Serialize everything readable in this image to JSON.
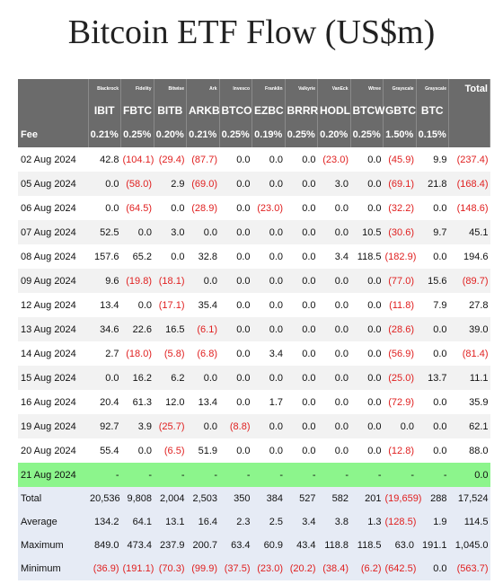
{
  "title": "Bitcoin ETF Flow (US$m)",
  "table": {
    "issuers": [
      "Blackrock",
      "Fidelity",
      "Bitwise",
      "Ark",
      "Invesco",
      "Franklin",
      "Valkyrie",
      "VanEck",
      "Wtree",
      "Grayscale",
      "Grayscale",
      "Total"
    ],
    "tickers": [
      "IBIT",
      "FBTC",
      "BITB",
      "ARKB",
      "BTCO",
      "EZBC",
      "BRRR",
      "HODL",
      "BTCW",
      "GBTC",
      "BTC"
    ],
    "fee": {
      "label": "Fee",
      "values": [
        "0.21%",
        "0.25%",
        "0.20%",
        "0.21%",
        "0.25%",
        "0.19%",
        "0.25%",
        "0.20%",
        "0.25%",
        "1.50%",
        "0.15%"
      ]
    },
    "rows": [
      {
        "date": "02 Aug 2024",
        "values": [
          "42.8",
          "(104.1)",
          "(29.4)",
          "(87.7)",
          "0.0",
          "0.0",
          "0.0",
          "(23.0)",
          "0.0",
          "(45.9)",
          "9.9",
          "(237.4)"
        ]
      },
      {
        "date": "05 Aug 2024",
        "values": [
          "0.0",
          "(58.0)",
          "2.9",
          "(69.0)",
          "0.0",
          "0.0",
          "0.0",
          "3.0",
          "0.0",
          "(69.1)",
          "21.8",
          "(168.4)"
        ]
      },
      {
        "date": "06 Aug 2024",
        "values": [
          "0.0",
          "(64.5)",
          "0.0",
          "(28.9)",
          "0.0",
          "(23.0)",
          "0.0",
          "0.0",
          "0.0",
          "(32.2)",
          "0.0",
          "(148.6)"
        ]
      },
      {
        "date": "07 Aug 2024",
        "values": [
          "52.5",
          "0.0",
          "3.0",
          "0.0",
          "0.0",
          "0.0",
          "0.0",
          "0.0",
          "10.5",
          "(30.6)",
          "9.7",
          "45.1"
        ]
      },
      {
        "date": "08 Aug 2024",
        "values": [
          "157.6",
          "65.2",
          "0.0",
          "32.8",
          "0.0",
          "0.0",
          "0.0",
          "3.4",
          "118.5",
          "(182.9)",
          "0.0",
          "194.6"
        ]
      },
      {
        "date": "09 Aug 2024",
        "values": [
          "9.6",
          "(19.8)",
          "(18.1)",
          "0.0",
          "0.0",
          "0.0",
          "0.0",
          "0.0",
          "0.0",
          "(77.0)",
          "15.6",
          "(89.7)"
        ]
      },
      {
        "date": "12 Aug 2024",
        "values": [
          "13.4",
          "0.0",
          "(17.1)",
          "35.4",
          "0.0",
          "0.0",
          "0.0",
          "0.0",
          "0.0",
          "(11.8)",
          "7.9",
          "27.8"
        ]
      },
      {
        "date": "13 Aug 2024",
        "values": [
          "34.6",
          "22.6",
          "16.5",
          "(6.1)",
          "0.0",
          "0.0",
          "0.0",
          "0.0",
          "0.0",
          "(28.6)",
          "0.0",
          "39.0"
        ]
      },
      {
        "date": "14 Aug 2024",
        "values": [
          "2.7",
          "(18.0)",
          "(5.8)",
          "(6.8)",
          "0.0",
          "3.4",
          "0.0",
          "0.0",
          "0.0",
          "(56.9)",
          "0.0",
          "(81.4)"
        ]
      },
      {
        "date": "15 Aug 2024",
        "values": [
          "0.0",
          "16.2",
          "6.2",
          "0.0",
          "0.0",
          "0.0",
          "0.0",
          "0.0",
          "0.0",
          "(25.0)",
          "13.7",
          "11.1"
        ]
      },
      {
        "date": "16 Aug 2024",
        "values": [
          "20.4",
          "61.3",
          "12.0",
          "13.4",
          "0.0",
          "1.7",
          "0.0",
          "0.0",
          "0.0",
          "(72.9)",
          "0.0",
          "35.9"
        ]
      },
      {
        "date": "19 Aug 2024",
        "values": [
          "92.7",
          "3.9",
          "(25.7)",
          "0.0",
          "(8.8)",
          "0.0",
          "0.0",
          "0.0",
          "0.0",
          "0.0",
          "0.0",
          "62.1"
        ]
      },
      {
        "date": "20 Aug 2024",
        "values": [
          "55.4",
          "0.0",
          "(6.5)",
          "51.9",
          "0.0",
          "0.0",
          "0.0",
          "0.0",
          "0.0",
          "(12.8)",
          "0.0",
          "88.0"
        ]
      },
      {
        "date": "21 Aug 2024",
        "values": [
          "-",
          "-",
          "-",
          "-",
          "-",
          "-",
          "-",
          "-",
          "-",
          "-",
          "-",
          "0.0"
        ]
      }
    ],
    "summary": [
      {
        "label": "Total",
        "values": [
          "20,536",
          "9,808",
          "2,004",
          "2,503",
          "350",
          "384",
          "527",
          "582",
          "201",
          "(19,659)",
          "288",
          "17,524"
        ]
      },
      {
        "label": "Average",
        "values": [
          "134.2",
          "64.1",
          "13.1",
          "16.4",
          "2.3",
          "2.5",
          "3.4",
          "3.8",
          "1.3",
          "(128.5)",
          "1.9",
          "114.5"
        ]
      },
      {
        "label": "Maximum",
        "values": [
          "849.0",
          "473.4",
          "237.9",
          "200.7",
          "63.4",
          "60.9",
          "43.4",
          "118.8",
          "118.5",
          "63.0",
          "191.1",
          "1,045.0"
        ]
      },
      {
        "label": "Minimum",
        "values": [
          "(36.9)",
          "(191.1)",
          "(70.3)",
          "(99.9)",
          "(37.5)",
          "(23.0)",
          "(20.2)",
          "(38.4)",
          "(6.2)",
          "(642.5)",
          "0.0",
          "(563.7)"
        ]
      }
    ]
  }
}
